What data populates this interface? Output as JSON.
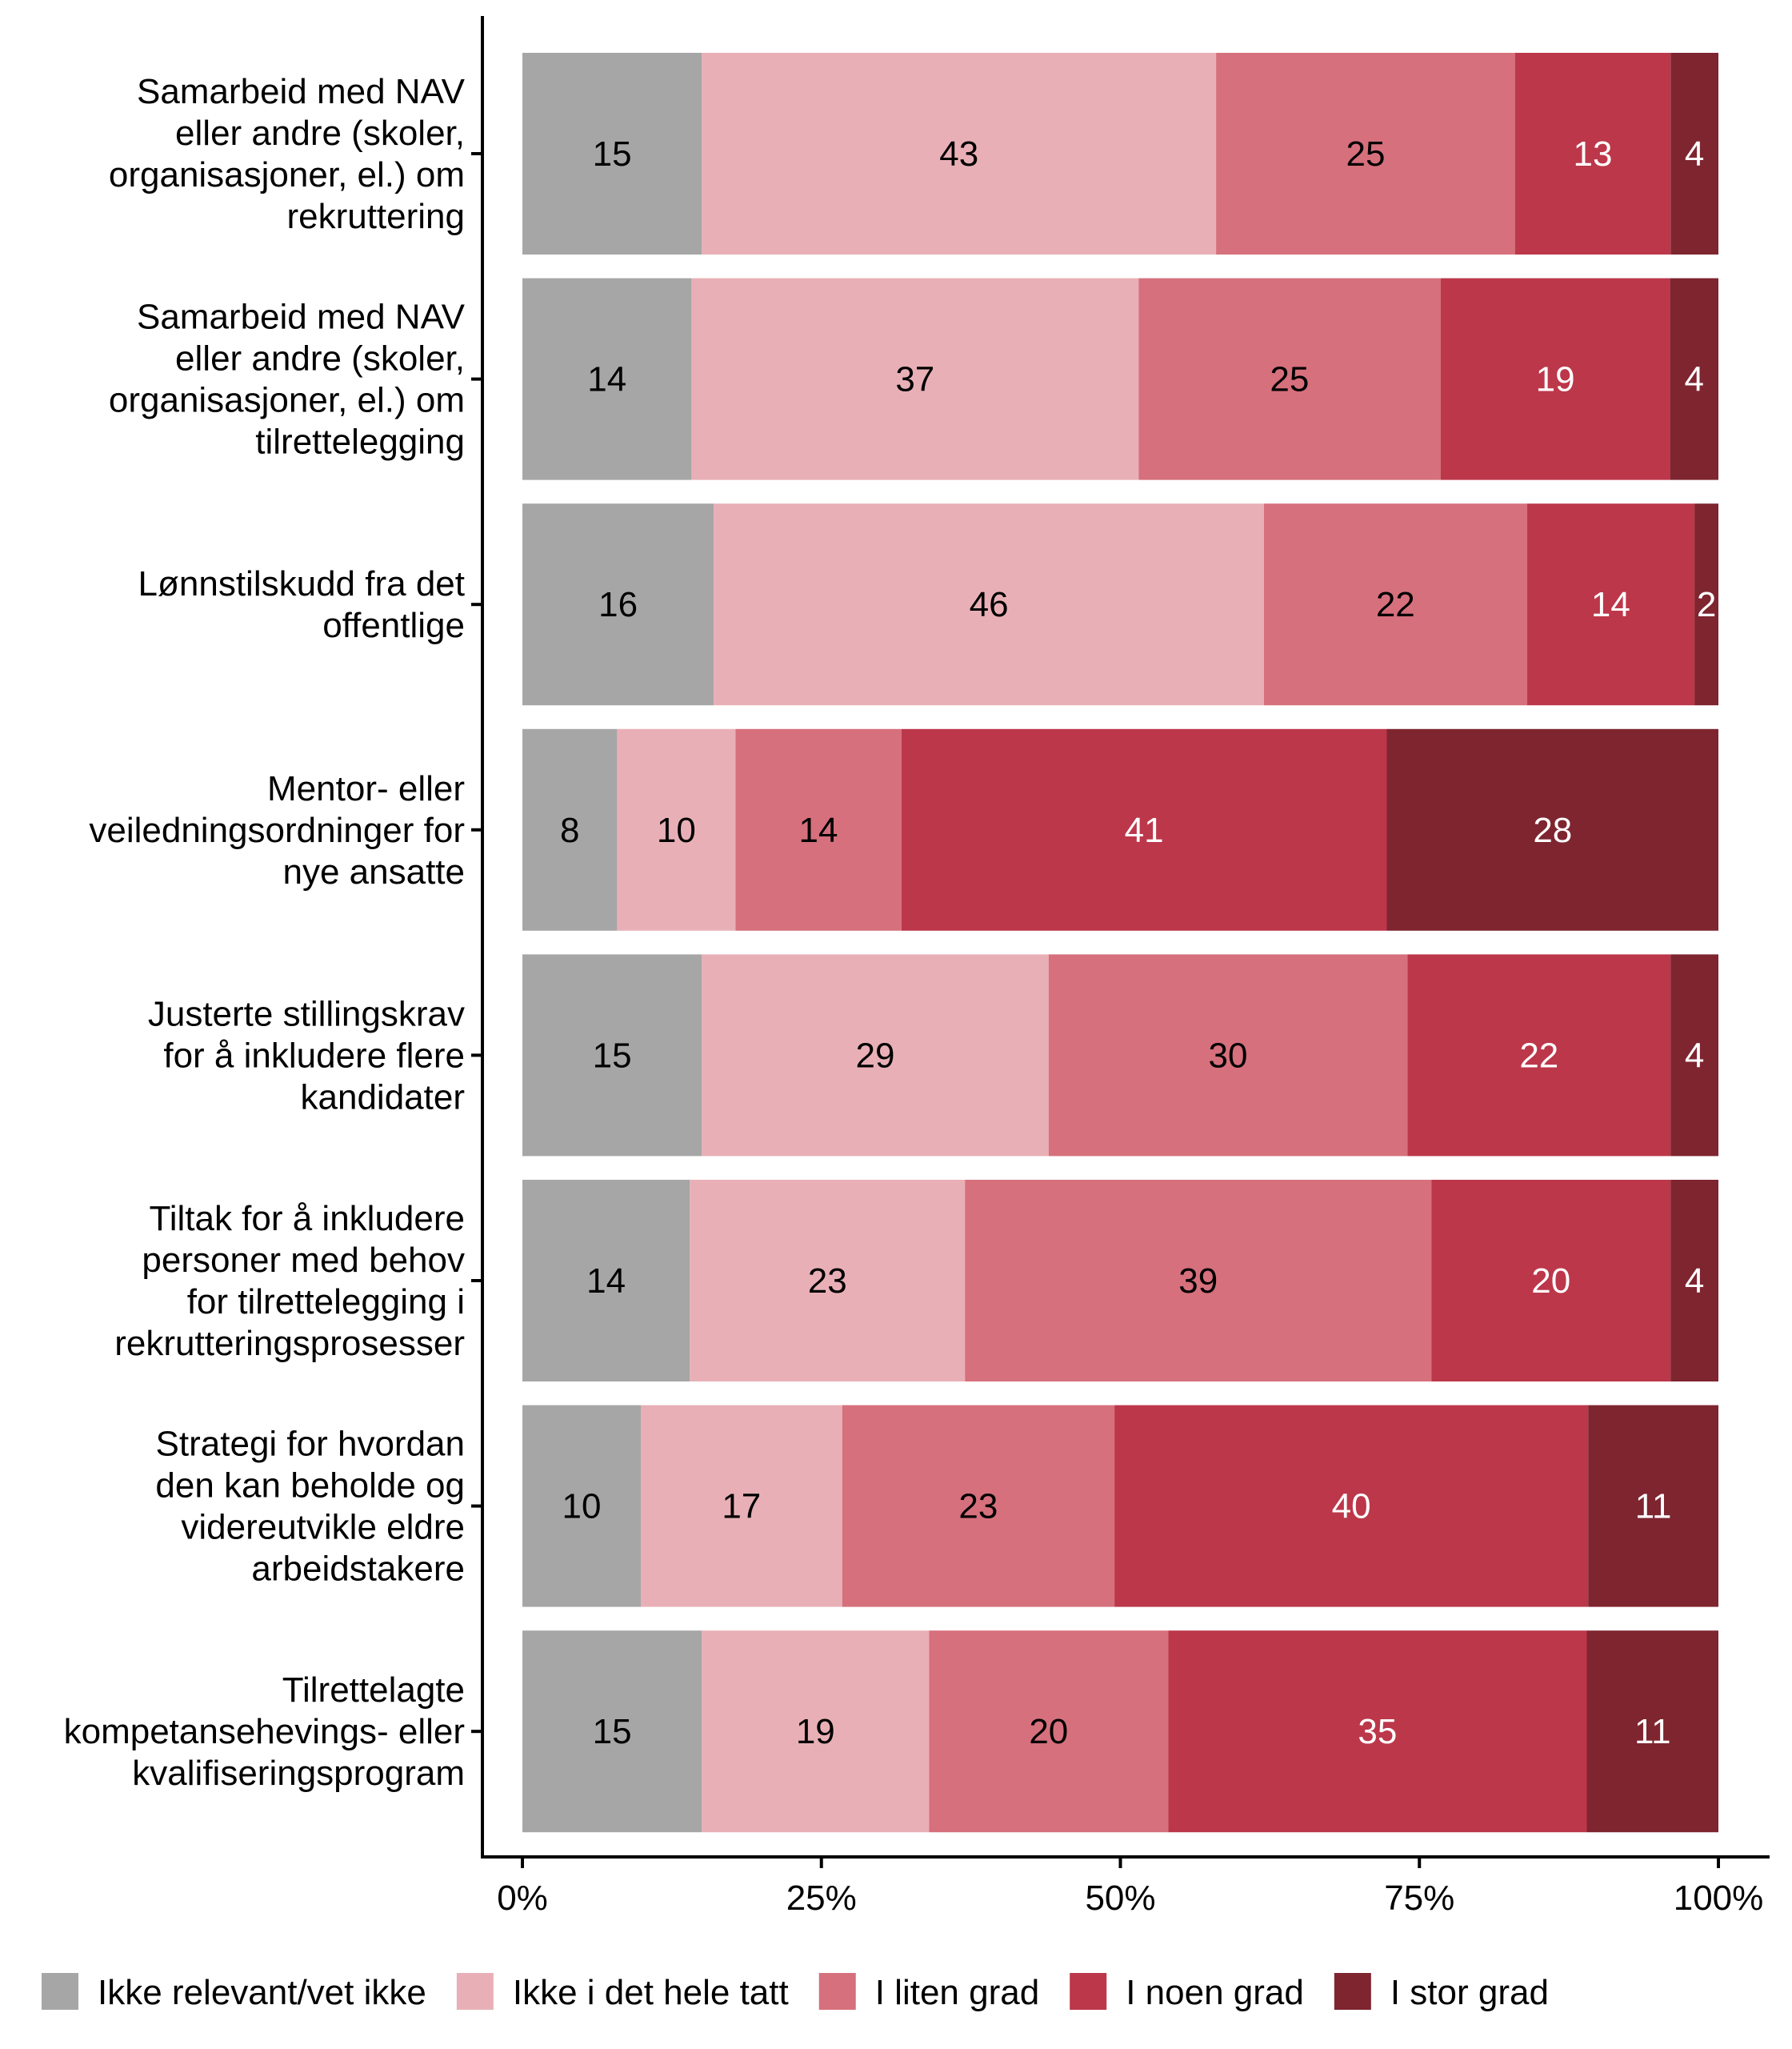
{
  "chart_data": {
    "type": "bar",
    "orientation": "horizontal",
    "stacked": true,
    "title": "",
    "xlabel": "",
    "ylabel": "",
    "xlim": [
      0,
      100
    ],
    "x_ticks": [
      "0%",
      "25%",
      "50%",
      "75%",
      "100%"
    ],
    "x_tick_values": [
      0,
      25,
      50,
      75,
      100
    ],
    "grid": false,
    "legend_position": "bottom",
    "categories": [
      [
        "Samarbeid med NAV",
        "eller andre (skoler,",
        "organisasjoner, el.) om",
        "rekruttering"
      ],
      [
        "Samarbeid med NAV",
        "eller andre (skoler,",
        "organisasjoner, el.) om",
        "tilrettelegging"
      ],
      [
        "Lønnstilskudd fra det",
        "offentlige"
      ],
      [
        "Mentor- eller",
        "veiledningsordninger for",
        "nye ansatte"
      ],
      [
        "Justerte stillingskrav",
        "for å inkludere flere",
        "kandidater"
      ],
      [
        "Tiltak for å inkludere",
        "personer med behov",
        "for tilrettelegging i",
        "rekrutteringsprosesser"
      ],
      [
        "Strategi for hvordan",
        "den kan beholde og",
        "videreutvikle eldre",
        "arbeidstakere"
      ],
      [
        "Tilrettelagte",
        "kompetansehevings- eller",
        "kvalifiseringsprogram"
      ]
    ],
    "series": [
      {
        "name": "Ikke relevant/vet ikke",
        "color": "#a6a6a6",
        "label_color": "#000000",
        "values": [
          15,
          14,
          16,
          8,
          15,
          14,
          10,
          15
        ]
      },
      {
        "name": "Ikke i det hele tatt",
        "color": "#e8b0b6",
        "label_color": "#000000",
        "values": [
          43,
          37,
          46,
          10,
          29,
          23,
          17,
          19
        ]
      },
      {
        "name": "I liten grad",
        "color": "#d6707c",
        "label_color": "#000000",
        "values": [
          25,
          25,
          22,
          14,
          30,
          39,
          23,
          20
        ]
      },
      {
        "name": "I noen grad",
        "color": "#bc374a",
        "label_color": "#ffffff",
        "values": [
          13,
          19,
          14,
          41,
          22,
          20,
          40,
          35
        ]
      },
      {
        "name": "I stor grad",
        "color": "#7e2530",
        "label_color": "#ffffff",
        "values": [
          4,
          4,
          2,
          28,
          4,
          4,
          11,
          11
        ]
      }
    ]
  }
}
